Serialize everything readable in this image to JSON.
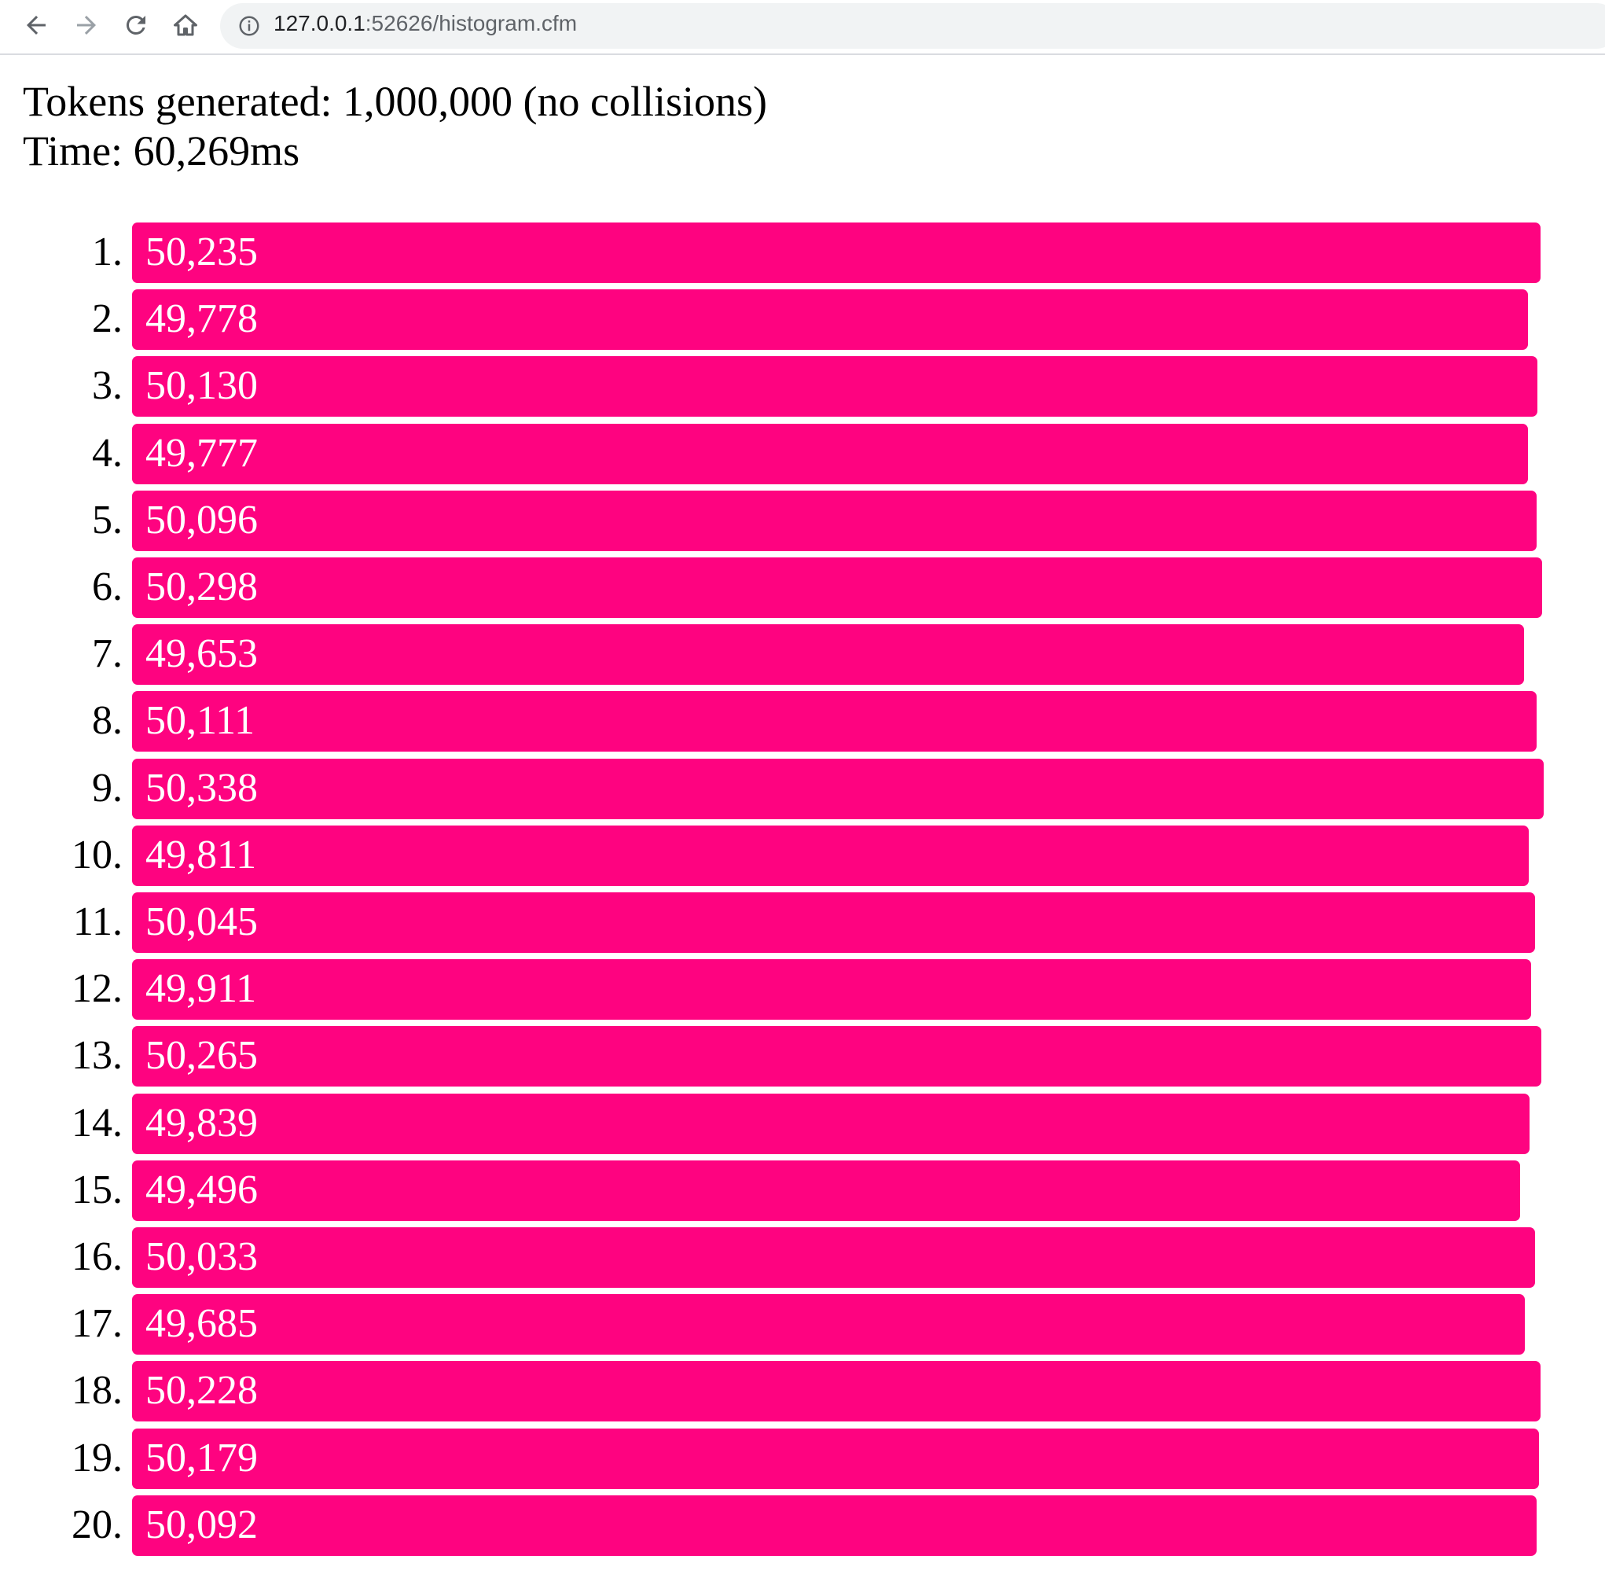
{
  "browser": {
    "url": {
      "host": "127.0.0.1",
      "path": ":52626/histogram.cfm"
    }
  },
  "summary": {
    "lines": [
      "Tokens generated: 1,000,000 (no collisions)",
      "Time: 60,269ms"
    ]
  },
  "histogram": {
    "markers": [
      "1.",
      "2.",
      "3.",
      "4.",
      "5.",
      "6.",
      "7.",
      "8.",
      "9.",
      "10.",
      "11.",
      "12.",
      "13.",
      "14.",
      "15.",
      "16.",
      "17.",
      "18.",
      "19.",
      "20."
    ],
    "values": [
      50235,
      49778,
      50130,
      49777,
      50096,
      50298,
      49653,
      50111,
      50338,
      49811,
      50045,
      49911,
      50265,
      49839,
      49496,
      50033,
      49685,
      50228,
      50179,
      50092
    ],
    "value_labels": [
      "50,235",
      "49,778",
      "50,130",
      "49,777",
      "50,096",
      "50,298",
      "49,653",
      "50,111",
      "50,338",
      "49,811",
      "50,045",
      "49,911",
      "50,265",
      "49,839",
      "49,496",
      "50,033",
      "49,685",
      "50,228",
      "50,179",
      "50,092"
    ],
    "color": "#fe0380"
  }
}
